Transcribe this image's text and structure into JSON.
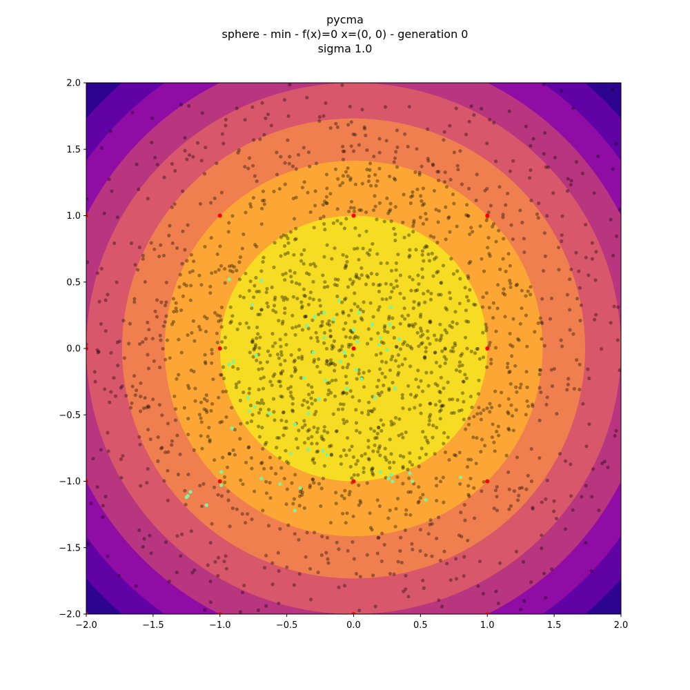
{
  "chart_data": {
    "type": "scatter",
    "title_lines": [
      "pycma",
      "sphere - min - f(x)=0 x=(0, 0) - generation 0",
      "sigma 1.0"
    ],
    "xlabel": "",
    "ylabel": "",
    "xlim": [
      -2.0,
      2.0
    ],
    "ylim": [
      -2.0,
      2.0
    ],
    "grid": false,
    "x_ticks": [
      "−2.0",
      "−1.5",
      "−1.0",
      "−0.5",
      "0.0",
      "0.5",
      "1.0",
      "1.5",
      "2.0"
    ],
    "x_tick_values": [
      -2.0,
      -1.5,
      -1.0,
      -0.5,
      0.0,
      0.5,
      1.0,
      1.5,
      2.0
    ],
    "y_ticks": [
      "2.0",
      "1.5",
      "1.0",
      "0.5",
      "0.0",
      "−0.5",
      "−1.0",
      "−1.5",
      "−2.0"
    ],
    "y_tick_values": [
      2.0,
      1.5,
      1.0,
      0.5,
      0.0,
      -0.5,
      -1.0,
      -1.5,
      -2.0
    ],
    "contour": {
      "function": "sphere",
      "level_radii": [
        1.0,
        1.414,
        1.732,
        2.0,
        2.236,
        2.449,
        2.646
      ],
      "colors": [
        "#f6dc22",
        "#fca636",
        "#ef7f4f",
        "#d8576b",
        "#b8357f",
        "#8f0da4",
        "#6002a4",
        "#2c048f"
      ]
    },
    "grid_points": {
      "color": "#ff0000",
      "points": [
        [
          -1,
          1
        ],
        [
          0,
          1
        ],
        [
          1,
          1
        ],
        [
          -1,
          0
        ],
        [
          0,
          0
        ],
        [
          1,
          0
        ],
        [
          -1,
          -1
        ],
        [
          0,
          -1
        ],
        [
          1,
          -1
        ],
        [
          -2,
          1
        ],
        [
          -2,
          0
        ],
        [
          -2,
          -1
        ],
        [
          -2,
          -2
        ],
        [
          -1,
          -2
        ],
        [
          0,
          -2
        ],
        [
          1,
          -2
        ]
      ]
    },
    "samples": {
      "name": "population samples",
      "color": "#000000",
      "opacity": 0.35,
      "count": 1900,
      "distribution": "gaussian",
      "mean": [
        0,
        0
      ],
      "sigma": 1.0
    },
    "highlighted": {
      "color": "#7ff5a0",
      "points": [
        [
          -0.93,
          0.52
        ],
        [
          -0.69,
          0.51
        ],
        [
          -0.76,
          0.33
        ],
        [
          -0.11,
          0.36
        ],
        [
          -0.29,
          0.24
        ],
        [
          -0.22,
          0.27
        ],
        [
          -0.15,
          0.22
        ],
        [
          0.04,
          0.27
        ],
        [
          0.14,
          0.18
        ],
        [
          0.28,
          0.31
        ],
        [
          0.27,
          0.18
        ],
        [
          -0.35,
          0.17
        ],
        [
          -0.22,
          0.08
        ],
        [
          0.0,
          0.14
        ],
        [
          0.2,
          0.08
        ],
        [
          0.34,
          0.07
        ],
        [
          0.03,
          0.05
        ],
        [
          0.19,
          0.03
        ],
        [
          0.25,
          -0.01
        ],
        [
          -0.3,
          -0.03
        ],
        [
          -0.07,
          -0.03
        ],
        [
          -0.73,
          -0.05
        ],
        [
          -0.9,
          -0.1
        ],
        [
          -0.93,
          -0.12
        ],
        [
          -0.1,
          -0.1
        ],
        [
          0.02,
          -0.16
        ],
        [
          -0.37,
          -0.22
        ],
        [
          -0.21,
          -0.24
        ],
        [
          0.06,
          -0.23
        ],
        [
          -0.05,
          -0.3
        ],
        [
          -0.79,
          -0.37
        ],
        [
          0.16,
          -0.37
        ],
        [
          -0.26,
          -0.38
        ],
        [
          0.31,
          -0.3
        ],
        [
          -0.74,
          -0.44
        ],
        [
          -0.78,
          -0.47
        ],
        [
          -0.63,
          -0.49
        ],
        [
          -0.34,
          -0.49
        ],
        [
          -0.44,
          -0.57
        ],
        [
          -0.91,
          -0.6
        ],
        [
          -0.34,
          -0.76
        ],
        [
          -0.23,
          -0.77
        ],
        [
          -0.2,
          -0.8
        ],
        [
          -0.47,
          -0.79
        ],
        [
          -0.99,
          -0.93
        ],
        [
          0.2,
          -0.93
        ],
        [
          0.28,
          -0.95
        ],
        [
          0.42,
          -0.94
        ],
        [
          0.8,
          -0.97
        ],
        [
          -0.69,
          -0.98
        ],
        [
          0.26,
          -0.98
        ],
        [
          0.29,
          -1.0
        ],
        [
          0.44,
          -1.0
        ],
        [
          -0.99,
          -1.03
        ],
        [
          -0.55,
          -1.02
        ],
        [
          -1.22,
          -1.08
        ],
        [
          -0.4,
          -1.05
        ],
        [
          -1.24,
          -1.11
        ],
        [
          -1.25,
          -1.12
        ],
        [
          0.54,
          -1.14
        ],
        [
          -1.1,
          -1.18
        ],
        [
          -0.44,
          -1.22
        ]
      ]
    }
  }
}
